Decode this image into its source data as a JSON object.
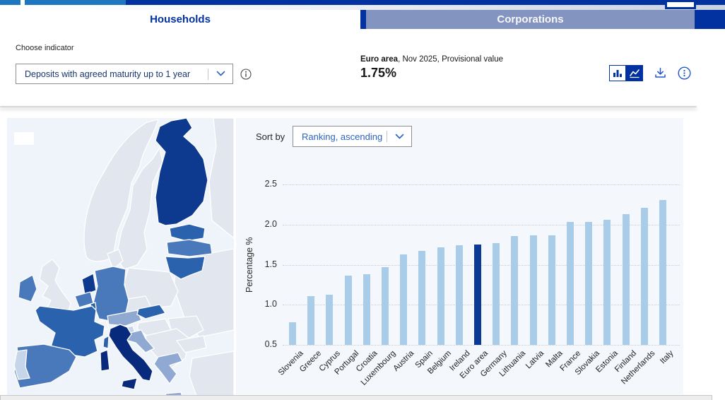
{
  "brand": {
    "navy": "#0232a0",
    "medium_blue": "#1e75c0",
    "accent_blue": "#2257c4"
  },
  "tabs": {
    "households": "Households",
    "corporations": "Corporations"
  },
  "indicator": {
    "label": "Choose indicator",
    "value": "Deposits with agreed maturity up to 1 year"
  },
  "headline": {
    "area": "Euro area",
    "meta": ", Nov 2025, Provisional value",
    "value": "1.75%"
  },
  "sort": {
    "label": "Sort by",
    "value": "Ranking, ascending"
  },
  "icons": [
    "bar-chart",
    "line-chart",
    "download",
    "more-options",
    "info",
    "chevron-down"
  ],
  "chart_data": {
    "type": "bar",
    "title": "",
    "xlabel": "",
    "ylabel": "Percentage %",
    "ylim": [
      0.5,
      2.5
    ],
    "yticks": [
      0.5,
      1.0,
      1.5,
      2.0,
      2.5
    ],
    "ytick_labels": [
      "0.5",
      "1.0",
      "1.5",
      "2.0",
      "2.5"
    ],
    "grid": "horizontal-dotted",
    "legend": "none",
    "sort_order": "ranking ascending",
    "categories": [
      "Slovenia",
      "Greece",
      "Cyprus",
      "Portugal",
      "Croatia",
      "Luxembourg",
      "Austria",
      "Spain",
      "Belgium",
      "Ireland",
      "Euro area",
      "Germany",
      "Lithuania",
      "Latvia",
      "Malta",
      "France",
      "Slovakia",
      "Estonia",
      "Finland",
      "Netherlands",
      "Italy"
    ],
    "values": [
      0.78,
      1.11,
      1.13,
      1.36,
      1.38,
      1.47,
      1.63,
      1.67,
      1.72,
      1.74,
      1.75,
      1.77,
      1.86,
      1.87,
      1.87,
      2.03,
      2.03,
      2.06,
      2.13,
      2.21,
      2.31
    ],
    "highlight_category": "Euro area",
    "bar_color": "#a9cde8",
    "highlight_color": "#0b3a96"
  },
  "map": {
    "type": "choropleth",
    "region": "Europe",
    "sea": "#eff3fa",
    "non_euro": "#e2e6ee",
    "neutral": "#f2f4f6",
    "palette": {
      "0": "#c6d5ea",
      "1": "#8fa9d2",
      "2": "#4a79bb",
      "3": "#2b62ad",
      "4": "#0d3a8f",
      "5": "#072a7d"
    },
    "country_levels": {
      "slovenia": 0,
      "portugal": 0,
      "greece": 1,
      "austria": 1,
      "croatia": 1,
      "ireland": 2,
      "spain": 2,
      "germany": 2,
      "belgium": 2,
      "latvia": 2,
      "france": 3,
      "slovakia": 3,
      "lithuania": 3,
      "estonia": 3,
      "luxembourg": 3,
      "finland": 4,
      "netherlands": 4,
      "italy": 5
    }
  }
}
